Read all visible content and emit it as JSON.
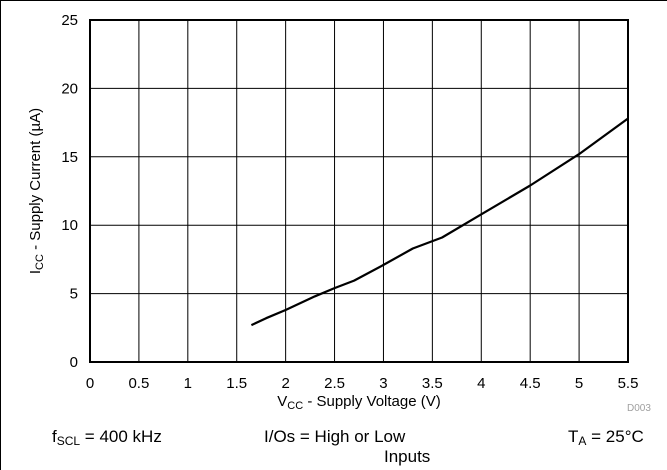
{
  "figure_id": "D003",
  "chart_data": {
    "type": "line",
    "xlabel": {
      "main": "V",
      "sub": "CC",
      "rest": " - Supply Voltage (V)"
    },
    "ylabel": {
      "main": "I",
      "sub": "CC",
      "rest": " - Supply Current (µA)"
    },
    "xlim": [
      0,
      5.5
    ],
    "ylim": [
      0,
      25
    ],
    "xticks": [
      "0",
      "0.5",
      "1",
      "1.5",
      "2",
      "2.5",
      "3",
      "3.5",
      "4",
      "4.5",
      "5",
      "5.5"
    ],
    "yticks": [
      "0",
      "5",
      "10",
      "15",
      "20",
      "25"
    ],
    "grid": true,
    "series": [
      {
        "x": [
          1.65,
          1.8,
          2.0,
          2.3,
          2.5,
          2.7,
          3.0,
          3.3,
          3.6,
          4.0,
          4.5,
          5.0,
          5.5
        ],
        "y": [
          2.7,
          3.2,
          3.8,
          4.8,
          5.4,
          5.95,
          7.1,
          8.3,
          9.1,
          10.8,
          12.9,
          15.2,
          17.8
        ]
      }
    ]
  },
  "conditions": {
    "fscl": {
      "main": "f",
      "sub": "SCL",
      "rest": " = 400 kHz"
    },
    "ios_line1": "I/Os = High or Low",
    "ios_line2": "Inputs",
    "ta": {
      "main": "T",
      "sub": "A",
      "rest": " = 25°C"
    }
  }
}
